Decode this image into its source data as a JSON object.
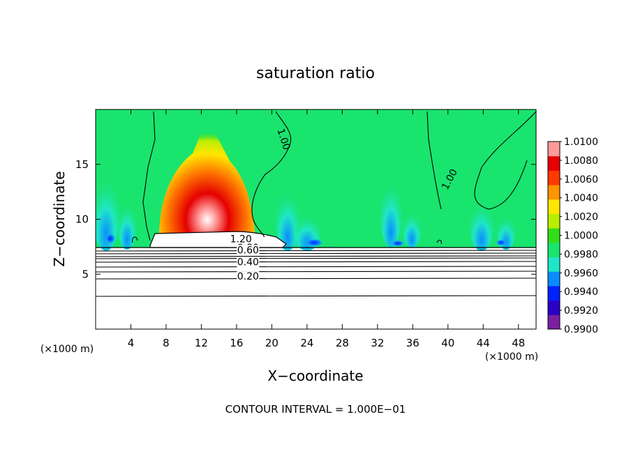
{
  "chart_data": {
    "type": "heatmap",
    "title": "saturation ratio",
    "xlabel": "X−coordinate",
    "ylabel": "Z−coordinate",
    "x_unit": "(×1000 m)",
    "z_unit": "(×1000 m)",
    "xlim": [
      0,
      50
    ],
    "ylim": [
      0,
      20
    ],
    "x_ticks": [
      "4",
      "8",
      "12",
      "16",
      "20",
      "24",
      "28",
      "32",
      "36",
      "40",
      "44",
      "48"
    ],
    "y_ticks": [
      "5",
      "10",
      "15"
    ],
    "footer": "CONTOUR INTERVAL = 1.000E−01",
    "contour_labels": [
      {
        "text": "1.00",
        "x": 21.0,
        "z": 17.2,
        "rotate": 72
      },
      {
        "text": "1.00",
        "x": 40.5,
        "z": 13.5,
        "rotate": -62
      },
      {
        "text": "1.20",
        "x": 16.5,
        "z": 7.9
      },
      {
        "text": "0.80",
        "x": 17.3,
        "z": 7.1
      },
      {
        "text": "0.60",
        "x": 17.3,
        "z": 6.9
      },
      {
        "text": "0.40",
        "x": 17.3,
        "z": 5.8
      },
      {
        "text": "0.20",
        "x": 17.3,
        "z": 4.5
      }
    ],
    "contour_levels": [
      0.2,
      0.4,
      0.6,
      0.8,
      1.0,
      1.2
    ],
    "colorbar": {
      "min": 0.99,
      "max": 1.01,
      "labels": [
        "1.0100",
        "1.0080",
        "1.0060",
        "1.0040",
        "1.0020",
        "1.0000",
        "0.9980",
        "0.9960",
        "0.9940",
        "0.9920",
        "0.9900"
      ],
      "colors": [
        "#7b1fa2",
        "#2a00c8",
        "#0022ff",
        "#0a8cff",
        "#1fe6c8",
        "#19e46e",
        "#33dd1a",
        "#b8ee00",
        "#ffe600",
        "#ff9400",
        "#ff3a00",
        "#e60000",
        "#ff9a9a"
      ]
    }
  }
}
